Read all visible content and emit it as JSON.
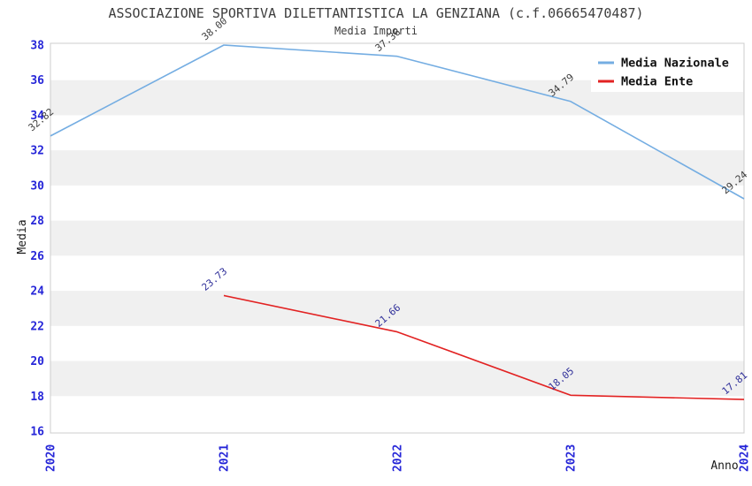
{
  "chart_data": {
    "type": "line",
    "title": "ASSOCIAZIONE SPORTIVA DILETTANTISTICA LA GENZIANA (c.f.06665470487)",
    "subtitle": "Media Importi",
    "xlabel": "Anno",
    "ylabel": "Media",
    "x": [
      "2020",
      "2021",
      "2022",
      "2023",
      "2024"
    ],
    "ylim": [
      16,
      38
    ],
    "yticks": [
      16,
      18,
      20,
      22,
      24,
      26,
      28,
      30,
      32,
      34,
      36,
      38
    ],
    "grid": "alternating-horizontal-bands",
    "legend_position": "top-right",
    "series": [
      {
        "name": "Media Nazionale",
        "color": "#74ade2",
        "label_color": "#3d3d3d",
        "values": [
          32.82,
          38.0,
          37.36,
          34.79,
          29.24
        ],
        "labels": [
          "32.82",
          "38.00",
          "37.36",
          "34.79",
          "29.24"
        ]
      },
      {
        "name": "Media Ente",
        "color": "#e22222",
        "label_color": "#30309a",
        "values": [
          null,
          23.73,
          21.66,
          18.05,
          17.81
        ],
        "labels": [
          null,
          "23.73",
          "21.66",
          "18.05",
          "17.81"
        ]
      }
    ],
    "colors": {
      "plot_background": "#ffffff",
      "band": "#f0f0f0",
      "border": "#cccccc",
      "tick_label": "#2626d8",
      "axis_title": "#1a1a1a",
      "title": "#3d3d3d",
      "legend_text": "#111111",
      "legend_background": "#ffffff"
    }
  }
}
